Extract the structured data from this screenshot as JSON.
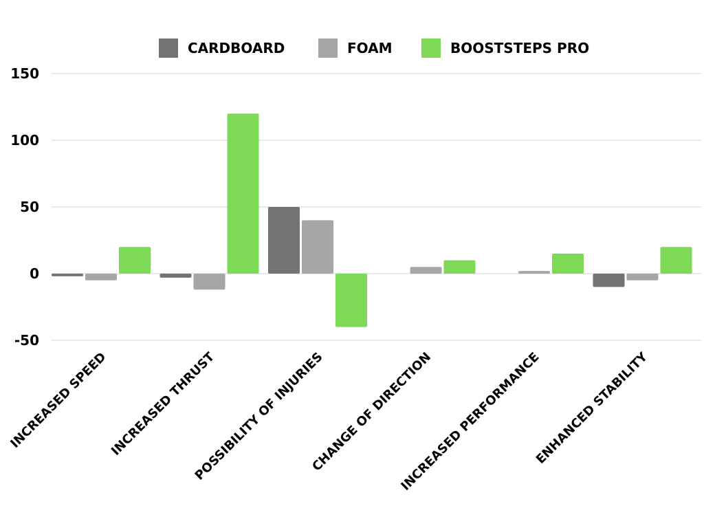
{
  "chart_data": {
    "type": "bar",
    "title": "",
    "xlabel": "",
    "ylabel": "",
    "ylim": [
      -50,
      150
    ],
    "yticks": [
      150,
      100,
      50,
      0,
      -50
    ],
    "grid": true,
    "legend_position": "top-center",
    "categories": [
      "INCREASED SPEED",
      "INCREASED THRUST",
      "POSSIBILITY OF INJURIES",
      "CHANGE OF DIRECTION",
      "INCREASED PERFORMANCE",
      "ENHANCED STABILITY"
    ],
    "series": [
      {
        "name": "CARDBOARD",
        "color": "#737373",
        "values": [
          -2,
          -3,
          50,
          0,
          0,
          -10
        ]
      },
      {
        "name": "FOAM",
        "color": "#a6a6a6",
        "values": [
          -5,
          -12,
          40,
          5,
          2,
          -5
        ]
      },
      {
        "name": "BOOSTSTEPS PRO",
        "color": "#7ed957",
        "values": [
          20,
          120,
          -40,
          10,
          15,
          20
        ]
      }
    ]
  }
}
